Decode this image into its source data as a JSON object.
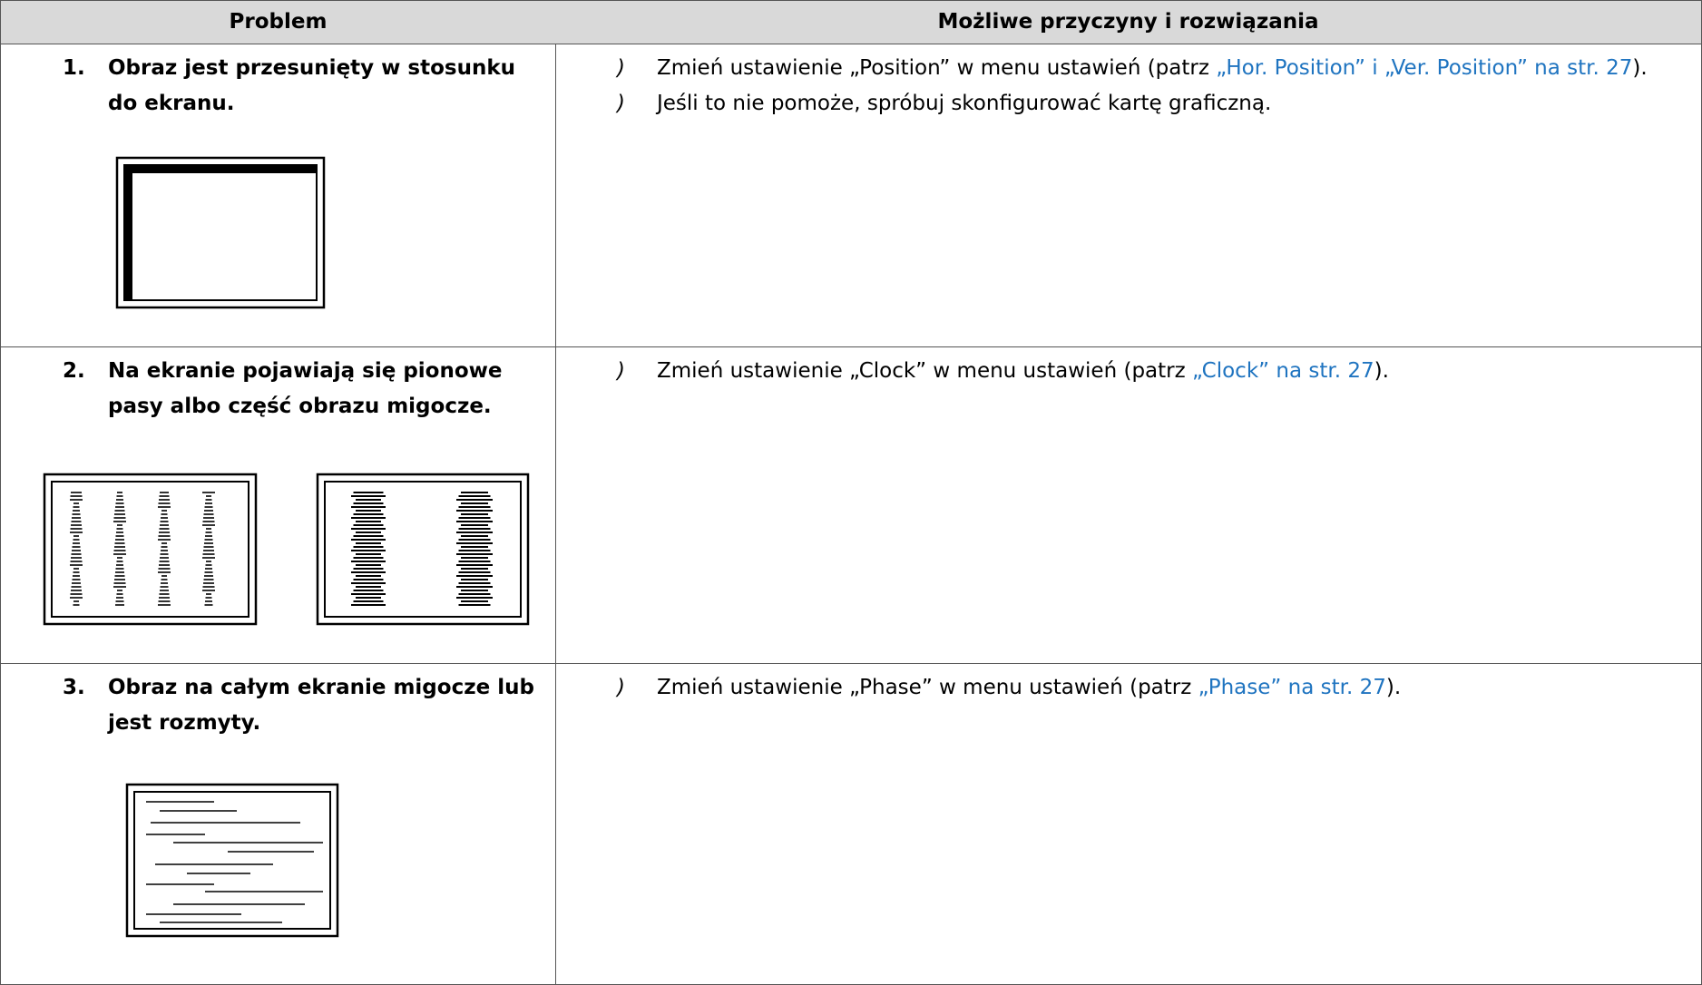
{
  "table": {
    "header": [
      "Problem",
      "Możliwe przyczyny i rozwiązania"
    ],
    "rows": [
      {
        "number": "1.",
        "problem": "Obraz jest przesunięty w stosunku do ekranu.",
        "solutions": [
          {
            "before": "Zmień ustawienie „Position” w menu ustawień (patrz ",
            "link": "„Hor. Position” i „Ver. Position” na str. 27",
            "after": ")."
          },
          {
            "text": "Jeśli to nie pomoże, spróbuj skonfigurować kartę graficzną."
          }
        ]
      },
      {
        "number": "2.",
        "problem": "Na ekranie pojawiają się pionowe pasy albo część obrazu migocze.",
        "solutions": [
          {
            "before": "Zmień ustawienie „Clock” w menu ustawień (patrz ",
            "link": "„Clock” na str. 27",
            "after": ")."
          }
        ]
      },
      {
        "number": "3.",
        "problem": "Obraz na całym ekranie migocze lub jest rozmyty.",
        "solutions": [
          {
            "before": "Zmień ustawienie „Phase” w menu ustawień (patrz ",
            "link": "„Phase” na str. 27",
            "after": ")."
          }
        ]
      }
    ]
  }
}
